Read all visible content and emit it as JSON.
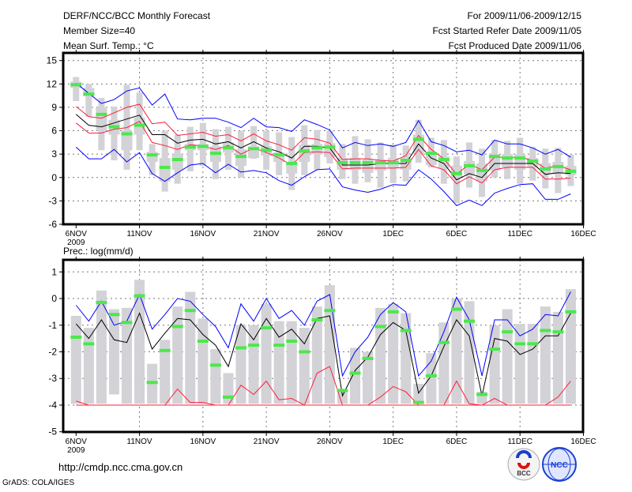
{
  "header": {
    "title": "DERF/NCC/BCC Monthly Forecast",
    "member_size": "Member Size=40",
    "variable": "Mean Surf. Temp.: °C",
    "period": "For 2009/11/06-2009/12/15",
    "started": "Fcst Started Refer Date 2009/11/05",
    "produced": "Fcst Produced Date 2009/11/06"
  },
  "footer": {
    "url": "http://cmdp.ncc.cma.gov.cn",
    "credit": "GrADS: COLA/IGES",
    "logo_bcc": "BCC",
    "logo_ncc": "NCC"
  },
  "colors": {
    "box": "#d2d2d7",
    "green": "#4be84b",
    "blue": "#0000ff",
    "red": "#ff1e3c",
    "black": "#000000"
  },
  "chart_data": [
    {
      "type": "line",
      "title": "Mean Surf. Temp.: °C",
      "ylim": [
        -6,
        15
      ],
      "yticks": [
        "15",
        "12",
        "9",
        "6",
        "3",
        "0",
        "-3",
        "-6"
      ],
      "ytick_values": [
        15,
        12,
        9,
        6,
        3,
        0,
        -3,
        -6
      ],
      "xtick_labels": [
        "6NOV",
        "11NOV",
        "16NOV",
        "21NOV",
        "26NOV",
        "1DEC",
        "6DEC",
        "11DEC",
        "16DEC"
      ],
      "xtick_year": "2009",
      "grid": true,
      "days": 40,
      "series": [
        {
          "name": "blue-upper",
          "color": "blue",
          "values": [
            12.1,
            10.8,
            9.5,
            10.0,
            11.1,
            11.5,
            9.3,
            10.7,
            7.5,
            7.4,
            7.6,
            7.6,
            7.1,
            6.4,
            7.6,
            6.5,
            6.4,
            5.9,
            7.4,
            6.8,
            6.1,
            3.8,
            4.5,
            4.1,
            4.3,
            4.0,
            4.5,
            7.3,
            4.6,
            4.1,
            3.3,
            3.5,
            2.9,
            4.8,
            4.3,
            4.3,
            3.8,
            3.0,
            3.6,
            2.6
          ]
        },
        {
          "name": "red-upper",
          "color": "red",
          "values": [
            9.1,
            7.8,
            7.6,
            8.3,
            9.0,
            9.4,
            6.9,
            7.1,
            5.4,
            5.6,
            5.8,
            5.3,
            5.5,
            4.7,
            5.6,
            4.7,
            4.2,
            3.5,
            5.1,
            4.9,
            4.4,
            2.3,
            2.4,
            2.4,
            2.2,
            2.1,
            2.8,
            5.4,
            3.6,
            2.4,
            0.4,
            1.7,
            1.0,
            2.6,
            2.6,
            2.6,
            2.2,
            1.2,
            1.5,
            1.0
          ]
        },
        {
          "name": "ensemble-mean",
          "color": "black",
          "values": [
            8.1,
            6.7,
            6.5,
            7.0,
            7.5,
            8.0,
            5.5,
            5.5,
            4.4,
            4.8,
            4.9,
            4.3,
            4.6,
            3.8,
            4.6,
            3.8,
            3.3,
            2.5,
            4.0,
            4.0,
            3.8,
            1.6,
            1.6,
            1.6,
            1.8,
            1.8,
            1.8,
            4.3,
            2.5,
            1.8,
            -0.3,
            0.5,
            0.0,
            1.8,
            1.8,
            1.8,
            1.8,
            0.4,
            0.6,
            0.5
          ]
        },
        {
          "name": "red-lower",
          "color": "red",
          "values": [
            7.0,
            5.7,
            5.7,
            6.2,
            6.4,
            7.2,
            4.5,
            4.1,
            3.6,
            4.2,
            4.0,
            3.6,
            4.1,
            3.0,
            3.8,
            3.2,
            2.5,
            1.6,
            3.2,
            3.3,
            3.2,
            1.1,
            1.2,
            1.2,
            1.2,
            1.2,
            1.3,
            3.6,
            1.5,
            1.0,
            -0.8,
            0.1,
            -0.7,
            1.0,
            1.3,
            1.3,
            1.3,
            -0.2,
            -0.2,
            -0.1
          ]
        },
        {
          "name": "blue-lower",
          "color": "blue",
          "values": [
            3.9,
            2.4,
            2.4,
            3.6,
            2.0,
            3.2,
            0.5,
            -0.5,
            0.6,
            1.6,
            1.8,
            0.6,
            1.7,
            0.7,
            0.9,
            0.6,
            -0.4,
            -1.0,
            0.1,
            1.0,
            1.1,
            -1.2,
            -1.6,
            -1.9,
            -1.5,
            -0.9,
            -1.0,
            1.0,
            -0.2,
            -1.8,
            -3.6,
            -2.9,
            -3.6,
            -2.0,
            -1.4,
            -0.9,
            -0.8,
            -2.8,
            -2.8,
            -2.1
          ]
        }
      ],
      "markers": [
        11.9,
        10.7,
        8.1,
        6.5,
        5.6,
        6.7,
        2.9,
        1.3,
        2.3,
        3.9,
        4.0,
        3.1,
        3.8,
        2.7,
        3.7,
        3.5,
        2.9,
        1.8,
        3.4,
        3.8,
        3.9,
        1.9,
        1.9,
        1.9,
        1.9,
        1.9,
        2.2,
        4.9,
        3.1,
        2.3,
        0.5,
        1.5,
        0.9,
        2.7,
        2.5,
        2.5,
        2.1,
        1.1,
        1.4,
        0.8
      ],
      "boxes": {
        "min": [
          9.8,
          7.8,
          3.5,
          2.2,
          1.0,
          3.5,
          0.3,
          -1.8,
          -0.8,
          0.8,
          1.5,
          -0.2,
          1.0,
          0.0,
          2.4,
          1.0,
          0.3,
          -1.6,
          0.3,
          1.0,
          1.8,
          -0.2,
          -0.8,
          -0.6,
          -1.3,
          -0.7,
          -0.5,
          1.9,
          1.3,
          -0.8,
          -3.3,
          -1.3,
          -2.5,
          0.0,
          -0.2,
          -0.8,
          -0.4,
          -1.4,
          -2.0,
          -1.1
        ],
        "q1": [
          11.5,
          10.4,
          6.0,
          5.5,
          3.5,
          5.5,
          2.0,
          -0.5,
          1.0,
          3.5,
          3.5,
          2.0,
          3.2,
          1.5,
          2.5,
          2.8,
          2.0,
          0.5,
          2.0,
          3.0,
          2.6,
          1.0,
          1.0,
          0.6,
          0.9,
          1.2,
          1.0,
          3.0,
          1.6,
          1.2,
          0.0,
          0.4,
          -0.5,
          0.9,
          1.3,
          1.0,
          1.3,
          0.5,
          0.6,
          0.3
        ],
        "q3": [
          12.3,
          11.5,
          9.0,
          7.4,
          6.0,
          7.7,
          3.3,
          2.5,
          3.0,
          4.3,
          4.3,
          4.0,
          4.5,
          3.6,
          4.0,
          4.0,
          3.2,
          2.0,
          4.2,
          4.3,
          4.4,
          2.5,
          2.5,
          2.3,
          2.3,
          2.5,
          2.5,
          5.5,
          3.3,
          2.7,
          1.5,
          2.1,
          1.8,
          3.0,
          3.0,
          3.0,
          2.5,
          1.8,
          2.0,
          1.5
        ],
        "max": [
          12.9,
          12.0,
          10.2,
          9.1,
          11.9,
          10.9,
          4.3,
          6.0,
          5.5,
          6.5,
          7.0,
          6.2,
          6.5,
          6.0,
          6.6,
          6.0,
          5.8,
          5.2,
          6.7,
          6.1,
          6.0,
          4.3,
          5.3,
          4.9,
          4.5,
          4.2,
          4.1,
          7.4,
          5.1,
          4.8,
          2.7,
          4.5,
          3.7,
          4.8,
          4.7,
          5.1,
          3.9,
          3.7,
          3.8,
          2.9
        ]
      }
    },
    {
      "type": "line",
      "title": "Prec.: log(mm/d)",
      "ylim": [
        -5,
        1.4
      ],
      "yticks": [
        "1",
        "0",
        "-1",
        "-2",
        "-3",
        "-4",
        "-5"
      ],
      "ytick_values": [
        1,
        0,
        -1,
        -2,
        -3,
        -4,
        -5
      ],
      "xtick_labels": [
        "6NOV",
        "11NOV",
        "16NOV",
        "21NOV",
        "26NOV",
        "1DEC",
        "6DEC",
        "11DEC",
        "16DEC"
      ],
      "xtick_year": "2009",
      "grid": true,
      "days": 40,
      "series": [
        {
          "name": "blue-upper",
          "color": "blue",
          "values": [
            -0.25,
            -0.85,
            -0.1,
            -1.0,
            -0.85,
            0.15,
            -1.15,
            -0.6,
            0.0,
            -0.1,
            -0.6,
            -1.05,
            -1.85,
            -0.2,
            -0.85,
            0.0,
            -0.75,
            -0.45,
            -1.0,
            -0.1,
            0.15,
            -2.9,
            -2.0,
            -1.45,
            -0.6,
            -0.15,
            -0.5,
            -2.9,
            -2.35,
            -1.25,
            0.05,
            -0.8,
            -2.9,
            -0.8,
            -0.8,
            -1.4,
            -1.15,
            -0.6,
            -0.65,
            0.25
          ]
        },
        {
          "name": "ensemble-mean",
          "color": "black",
          "values": [
            -0.95,
            -1.5,
            -0.8,
            -1.55,
            -1.65,
            -0.55,
            -1.9,
            -1.3,
            -0.75,
            -0.8,
            -1.35,
            -1.75,
            -2.55,
            -0.95,
            -1.55,
            -0.75,
            -1.45,
            -1.15,
            -1.7,
            -0.75,
            -0.65,
            -3.65,
            -2.7,
            -2.2,
            -1.35,
            -0.9,
            -1.2,
            -3.55,
            -2.9,
            -1.8,
            -0.8,
            -1.4,
            -3.65,
            -1.5,
            -1.6,
            -2.1,
            -1.9,
            -1.4,
            -1.4,
            -0.55
          ]
        },
        {
          "name": "red-upper",
          "color": "red",
          "values": [
            -3.85,
            -4,
            -4,
            -4,
            -4,
            -4,
            -4,
            -4,
            -3.4,
            -3.9,
            -3.9,
            -4,
            -4,
            -3.25,
            -3.6,
            -3.1,
            -3.8,
            -3.75,
            -4,
            -2.8,
            -2.55,
            -4,
            -4,
            -4,
            -3.7,
            -3.3,
            -3.5,
            -4,
            -4,
            -4,
            -3.1,
            -3.95,
            -4,
            -3.75,
            -4,
            -4,
            -4,
            -4,
            -3.7,
            -3.1
          ]
        },
        {
          "name": "red-lower",
          "color": "red",
          "values": [
            -4,
            -4,
            -4,
            -4,
            -4,
            -4,
            -4,
            -4,
            -4,
            -4,
            -4,
            -4,
            -4,
            -4,
            -4,
            -4,
            -4,
            -4,
            -4,
            -4,
            -4,
            -4,
            -4,
            -4,
            -4,
            -4,
            -4,
            -4,
            -4,
            -4,
            -4,
            -4,
            -4,
            -4,
            -4,
            -4,
            -4,
            -4,
            -4,
            -4
          ]
        }
      ],
      "markers": [
        -1.45,
        -1.7,
        -0.15,
        -0.6,
        -0.9,
        0.1,
        -3.15,
        -1.95,
        -1.05,
        -0.45,
        -1.6,
        -2.5,
        -3.7,
        -1.85,
        -1.75,
        -1.1,
        -1.75,
        -1.6,
        -2.0,
        -0.8,
        -0.45,
        -3.45,
        -2.8,
        -2.25,
        -1.05,
        -0.5,
        -1.2,
        -3.9,
        -2.9,
        -1.65,
        -0.4,
        -0.85,
        -3.6,
        -1.9,
        -1.25,
        -1.7,
        -1.7,
        -1.2,
        -1.25,
        -0.5
      ],
      "boxes": {
        "min": [
          -3.95,
          -3.95,
          -3.95,
          -3.6,
          -3.95,
          -3.95,
          -3.95,
          -3.95,
          -3.95,
          -3.95,
          -3.95,
          -3.95,
          -3.95,
          -3.95,
          -3.95,
          -3.95,
          -3.95,
          -3.95,
          -3.95,
          -3.95,
          -3.95,
          -3.95,
          -3.95,
          -3.95,
          -3.95,
          -3.95,
          -3.95,
          -3.95,
          -3.95,
          -3.95,
          -3.95,
          -3.95,
          -3.95,
          -3.95,
          -3.95,
          -3.95,
          -3.95,
          -3.95,
          -3.95,
          -3.95
        ],
        "max": [
          -0.65,
          -1.1,
          0.3,
          -0.4,
          -0.35,
          0.7,
          -2.45,
          -1.55,
          -0.3,
          0.25,
          -0.75,
          -1.9,
          -2.8,
          -1.0,
          -1.0,
          -0.2,
          -0.85,
          -0.85,
          -1.1,
          -0.3,
          0.5,
          -3.5,
          -1.85,
          -2.0,
          -0.35,
          -0.2,
          -0.55,
          -3.2,
          -2.05,
          -0.9,
          0.0,
          -0.1,
          -3.5,
          -1.0,
          -0.4,
          -0.95,
          -0.95,
          -0.3,
          -0.5,
          0.35
        ]
      }
    }
  ]
}
